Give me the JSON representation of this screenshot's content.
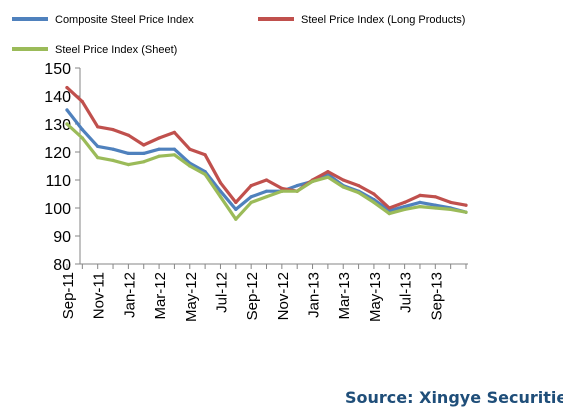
{
  "chart_data": {
    "type": "line",
    "title": "",
    "xlabel": "",
    "ylabel": "",
    "ylim": [
      80,
      150
    ],
    "yticks": [
      "80",
      "90",
      "100",
      "110",
      "120",
      "130",
      "140",
      "150"
    ],
    "x": [
      "Sep-11",
      "Oct-11",
      "Nov-11",
      "Dec-11",
      "Jan-12",
      "Feb-12",
      "Mar-12",
      "Apr-12",
      "May-12",
      "Jun-12",
      "Jul-12",
      "Aug-12",
      "Sep-12",
      "Oct-12",
      "Nov-12",
      "Dec-12",
      "Jan-13",
      "Feb-13",
      "Mar-13",
      "Apr-13",
      "May-13",
      "Jun-13",
      "Jul-13",
      "Aug-13",
      "Sep-13",
      "Oct-13",
      "Nov-13"
    ],
    "xtick_labels": [
      "Sep-11",
      "Nov-11",
      "Jan-12",
      "Mar-12",
      "May-12",
      "Jul-12",
      "Sep-12",
      "Nov-12",
      "Jan-13",
      "Mar-13",
      "May-13",
      "Jul-13",
      "Sep-13"
    ],
    "grid": false,
    "legend_position": "top",
    "series": [
      {
        "name": "Composite Steel Price Index",
        "color": "#4f81bd",
        "values": [
          135,
          128,
          122,
          121,
          119.5,
          119.5,
          121,
          121,
          116,
          113,
          106,
          99.5,
          104,
          106,
          106,
          108,
          109.5,
          112,
          108,
          106,
          103,
          99,
          100.5,
          102,
          101,
          100,
          98.5
        ]
      },
      {
        "name": "Steel Price Index (Long Products)",
        "color": "#c0504d",
        "values": [
          143,
          138,
          129,
          128,
          126,
          122.5,
          125,
          127,
          121,
          119,
          109,
          102,
          108,
          110,
          107,
          106,
          110,
          113,
          110,
          108,
          105,
          100,
          102,
          104.5,
          104,
          102,
          101
        ]
      },
      {
        "name": "Steel Price Index (Sheet)",
        "color": "#9bbb59",
        "values": [
          130,
          125,
          118,
          117,
          115.5,
          116.5,
          118.5,
          119,
          115,
          112,
          104,
          96,
          102,
          104,
          106,
          106,
          109.5,
          111,
          107.5,
          105.5,
          102,
          98,
          99.5,
          100.5,
          100,
          99.5,
          98.5
        ]
      }
    ]
  },
  "source_text": "Source: Xingye Securities"
}
